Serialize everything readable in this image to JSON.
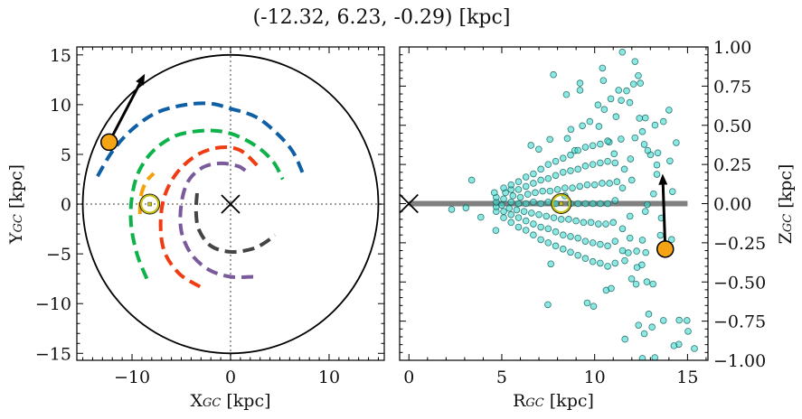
{
  "chart_data": [
    {
      "type": "line",
      "title": "(-12.32, 6.23, -0.29) [kpc]",
      "xlabel": {
        "main": "X",
        "sub": "GC",
        "unit": " [kpc]"
      },
      "ylabel": {
        "main": "Y",
        "sub": "GC",
        "unit": " [kpc]"
      },
      "xlim": [
        -15.6,
        15.6
      ],
      "ylim": [
        -15.7,
        15.8
      ],
      "xticks": [
        -10,
        0,
        10
      ],
      "yticks": [
        -15,
        -10,
        -5,
        0,
        5,
        10,
        15
      ],
      "grid": false,
      "reference_lines": {
        "x": 0,
        "y": 0,
        "style": "dotted",
        "color": "#808080"
      },
      "boundary_circle": {
        "center": [
          0,
          0
        ],
        "radius": 15,
        "color": "#000000"
      },
      "galactic_center": [
        0,
        0
      ],
      "sun": [
        -8.2,
        0
      ],
      "object": {
        "x": -12.32,
        "y": 6.23,
        "color": "#f5a514"
      },
      "velocity_arrow": {
        "from": [
          -12.32,
          6.23
        ],
        "to": [
          -8.7,
          13.1
        ]
      },
      "series": [
        {
          "color": "#0f5fa6",
          "points": [
            [
              -13.5,
              2.8
            ],
            [
              -12,
              5.3
            ],
            [
              -10,
              7.5
            ],
            [
              -7.5,
              9.2
            ],
            [
              -4.5,
              10.0
            ],
            [
              -2,
              10.1
            ],
            [
              0,
              9.6
            ],
            [
              2.5,
              8.8
            ],
            [
              4.5,
              7.3
            ],
            [
              6.3,
              5.3
            ],
            [
              7.5,
              2.7
            ]
          ]
        },
        {
          "color": "#0db34a",
          "points": [
            [
              -8.5,
              -7.5
            ],
            [
              -9.5,
              -5
            ],
            [
              -10.1,
              -2
            ],
            [
              -10,
              0.8
            ],
            [
              -9.3,
              3.3
            ],
            [
              -7.8,
              5.4
            ],
            [
              -5.5,
              6.9
            ],
            [
              -2.5,
              7.4
            ],
            [
              0,
              7.1
            ],
            [
              2.5,
              5.9
            ],
            [
              4.3,
              4.3
            ],
            [
              5.3,
              2.5
            ]
          ]
        },
        {
          "color": "#f5a00a",
          "points": [
            [
              -9.2,
              -1.0
            ],
            [
              -9.1,
              0.8
            ],
            [
              -8.6,
              2.2
            ],
            [
              -7.8,
              3.1
            ]
          ]
        },
        {
          "color": "#f03c12",
          "points": [
            [
              -3.1,
              -8.3
            ],
            [
              -5.2,
              -7
            ],
            [
              -6.7,
              -4.8
            ],
            [
              -7.1,
              -2
            ],
            [
              -6.7,
              0.8
            ],
            [
              -5.4,
              3.2
            ],
            [
              -3.3,
              5
            ],
            [
              -1,
              5.7
            ],
            [
              1,
              5.4
            ],
            [
              2.8,
              3.8
            ]
          ]
        },
        {
          "color": "#7b5a9c",
          "points": [
            [
              2.3,
              -7.3
            ],
            [
              0,
              -7.3
            ],
            [
              -2.2,
              -6.6
            ],
            [
              -4,
              -5
            ],
            [
              -5,
              -2.7
            ],
            [
              -5,
              0
            ],
            [
              -4.3,
              2.3
            ],
            [
              -2.8,
              3.7
            ],
            [
              -1,
              4.1
            ],
            [
              0.8,
              3.8
            ],
            [
              1.7,
              3.2
            ]
          ]
        },
        {
          "color": "#444444",
          "points": [
            [
              -3.4,
              1.1
            ],
            [
              -3.5,
              -0.8
            ],
            [
              -3.2,
              -2.6
            ],
            [
              -2,
              -4.2
            ],
            [
              0,
              -4.8
            ],
            [
              2.2,
              -4.5
            ],
            [
              3.6,
              -3.8
            ],
            [
              4.5,
              -3.1
            ]
          ]
        }
      ]
    },
    {
      "type": "scatter",
      "xlabel": {
        "main": "R",
        "sub": "GC",
        "unit": " [kpc]"
      },
      "ylabel": {
        "main": "Z",
        "sub": "GC",
        "unit": " [kpc]"
      },
      "xlim": [
        -0.5,
        16.1
      ],
      "ylim": [
        -1.0,
        1.0
      ],
      "xticks": [
        0,
        5,
        10,
        15
      ],
      "yticks": [
        -1.0,
        -0.75,
        -0.5,
        -0.25,
        0.0,
        0.25,
        0.5,
        0.75,
        1.0
      ],
      "ytick_labels": [
        "−1.00",
        "−0.75",
        "−0.50",
        "−0.25",
        "0.00",
        "0.25",
        "0.50",
        "0.75",
        "1.00"
      ],
      "yaxis_position": "right",
      "grid": false,
      "disk_line": {
        "from": 0,
        "to": 15,
        "z": 0,
        "color": "#808080"
      },
      "galactic_center": [
        0,
        0
      ],
      "sun": [
        8.2,
        0
      ],
      "object": {
        "x": 13.8,
        "y": -0.29,
        "color": "#f5a514"
      },
      "velocity_arrow": {
        "from": [
          13.8,
          -0.29
        ],
        "to": [
          13.66,
          0.19
        ]
      },
      "marker_color": "#40d8cf",
      "marker_edge": "#0a5a55",
      "points": [
        [
          11.49,
          0.967
        ],
        [
          12.17,
          0.907
        ],
        [
          10.42,
          0.865
        ],
        [
          12.35,
          0.817
        ],
        [
          7.78,
          0.823
        ],
        [
          10.47,
          0.786
        ],
        [
          9.21,
          0.769
        ],
        [
          9.21,
          0.724
        ],
        [
          8.48,
          0.696
        ],
        [
          11.29,
          0.724
        ],
        [
          11.72,
          0.72
        ],
        [
          12.09,
          0.763
        ],
        [
          12.46,
          0.769
        ],
        [
          10.87,
          0.669
        ],
        [
          11.43,
          0.659
        ],
        [
          11.89,
          0.645
        ],
        [
          10.18,
          0.63
        ],
        [
          10.52,
          0.601
        ],
        [
          14.0,
          0.597
        ],
        [
          11.15,
          0.555
        ],
        [
          12.41,
          0.545
        ],
        [
          12.73,
          0.547
        ],
        [
          13.7,
          0.524
        ],
        [
          13.25,
          0.501
        ],
        [
          14.39,
          0.389
        ],
        [
          9.74,
          0.524
        ],
        [
          9.34,
          0.497
        ],
        [
          8.72,
          0.474
        ],
        [
          8.53,
          0.416
        ],
        [
          7.59,
          0.41
        ],
        [
          6.57,
          0.372
        ],
        [
          6.99,
          0.347
        ],
        [
          14.05,
          0.272
        ],
        [
          14.19,
          0.077
        ],
        [
          3.38,
          0.15
        ],
        [
          2.3,
          -0.037
        ],
        [
          3.07,
          -0.027
        ],
        [
          3.87,
          -0.087
        ],
        [
          4.68,
          -0.171
        ],
        [
          7.48,
          -0.645
        ],
        [
          9.6,
          -0.634
        ],
        [
          9.94,
          -0.655
        ],
        [
          7.64,
          -0.385
        ],
        [
          10.62,
          -0.553
        ],
        [
          10.89,
          -0.541
        ],
        [
          11.63,
          -0.865
        ],
        [
          12.36,
          -0.776
        ],
        [
          12.91,
          -0.705
        ],
        [
          13.09,
          -0.788
        ],
        [
          12.67,
          -0.83
        ],
        [
          13.7,
          -0.746
        ],
        [
          14.55,
          -0.744
        ],
        [
          14.97,
          -0.746
        ],
        [
          15.03,
          -0.815
        ],
        [
          14.53,
          -0.898
        ],
        [
          14.27,
          -0.907
        ],
        [
          15.37,
          -0.925
        ],
        [
          12.57,
          -0.988
        ],
        [
          13.24,
          -0.983
        ],
        [
          12.54,
          -0.391
        ],
        [
          12.81,
          -0.499
        ],
        [
          13.14,
          -0.513
        ],
        [
          11.99,
          -0.48
        ],
        [
          12.23,
          -0.514
        ],
        [
          12.28,
          -0.407
        ],
        [
          11.62,
          -0.364
        ],
        [
          11.81,
          -0.314
        ],
        [
          12.26,
          -0.303
        ],
        [
          12.75,
          -0.312
        ],
        [
          12.57,
          -0.233
        ],
        [
          13.54,
          -0.202
        ],
        [
          14.14,
          -0.229
        ],
        [
          13.59,
          -0.092
        ],
        [
          12.73,
          -0.05
        ],
        [
          12.83,
          -0.006
        ],
        [
          13.17,
          0.062
        ],
        [
          13.35,
          0.187
        ],
        [
          13.35,
          0.247
        ],
        [
          13.01,
          0.312
        ],
        [
          13.4,
          0.324
        ],
        [
          12.86,
          0.339
        ],
        [
          12.67,
          0.378
        ],
        [
          12.17,
          0.42
        ],
        [
          12.57,
          0.46
        ],
        [
          11.93,
          0.285
        ],
        [
          11.05,
          0.318
        ],
        [
          10.78,
          0.393
        ],
        [
          10.23,
          0.493
        ],
        [
          11.42,
          0.412
        ],
        [
          8.93,
          0.339
        ],
        [
          4.7,
          -0.05
        ],
        [
          4.7,
          -0.02
        ],
        [
          4.7,
          0.01
        ],
        [
          4.7,
          0.04
        ],
        [
          4.6,
          0.07
        ],
        [
          5.1,
          -0.09
        ],
        [
          5.1,
          -0.05
        ],
        [
          5.0,
          -0.01
        ],
        [
          5.1,
          0.03
        ],
        [
          5.2,
          0.07
        ],
        [
          5.1,
          0.1
        ],
        [
          5.5,
          -0.12
        ],
        [
          5.5,
          -0.07
        ],
        [
          5.4,
          -0.03
        ],
        [
          5.5,
          0.01
        ],
        [
          5.6,
          0.05
        ],
        [
          5.5,
          0.09
        ],
        [
          5.5,
          0.12
        ],
        [
          5.9,
          -0.15
        ],
        [
          5.9,
          -0.09
        ],
        [
          5.8,
          -0.04
        ],
        [
          5.9,
          0.0
        ],
        [
          6.0,
          0.04
        ],
        [
          5.9,
          0.09
        ],
        [
          5.9,
          0.14
        ],
        [
          6.3,
          -0.17
        ],
        [
          6.3,
          -0.11
        ],
        [
          6.2,
          -0.05
        ],
        [
          6.3,
          0.0
        ],
        [
          6.4,
          0.06
        ],
        [
          6.3,
          0.11
        ],
        [
          6.3,
          0.17
        ],
        [
          6.7,
          -0.2
        ],
        [
          6.7,
          -0.13
        ],
        [
          6.6,
          -0.06
        ],
        [
          6.7,
          0.01
        ],
        [
          6.8,
          0.07
        ],
        [
          6.7,
          0.13
        ],
        [
          6.7,
          0.19
        ],
        [
          7.1,
          -0.23
        ],
        [
          7.1,
          -0.15
        ],
        [
          7.0,
          -0.07
        ],
        [
          7.1,
          0.0
        ],
        [
          7.2,
          0.08
        ],
        [
          7.1,
          0.15
        ],
        [
          7.1,
          0.22
        ],
        [
          7.5,
          -0.25
        ],
        [
          7.5,
          -0.16
        ],
        [
          7.4,
          -0.08
        ],
        [
          7.5,
          0.01
        ],
        [
          7.6,
          0.08
        ],
        [
          7.5,
          0.16
        ],
        [
          7.5,
          0.25
        ],
        [
          7.9,
          -0.27
        ],
        [
          7.9,
          -0.18
        ],
        [
          7.8,
          -0.09
        ],
        [
          7.9,
          0.0
        ],
        [
          8.0,
          0.09
        ],
        [
          7.9,
          0.18
        ],
        [
          7.9,
          0.27
        ],
        [
          8.3,
          -0.29
        ],
        [
          8.3,
          -0.2
        ],
        [
          8.2,
          -0.1
        ],
        [
          8.4,
          0.05
        ],
        [
          8.4,
          0.1
        ],
        [
          8.3,
          0.2
        ],
        [
          8.3,
          0.29
        ],
        [
          8.7,
          -0.31
        ],
        [
          8.7,
          -0.21
        ],
        [
          8.6,
          -0.1
        ],
        [
          8.7,
          0.0
        ],
        [
          8.8,
          0.1
        ],
        [
          8.7,
          0.21
        ],
        [
          8.7,
          0.31
        ],
        [
          9.1,
          -0.33
        ],
        [
          9.1,
          -0.22
        ],
        [
          9.0,
          -0.11
        ],
        [
          9.1,
          0.0
        ],
        [
          9.2,
          0.11
        ],
        [
          9.1,
          0.22
        ],
        [
          9.1,
          0.34
        ],
        [
          9.5,
          -0.35
        ],
        [
          9.5,
          -0.24
        ],
        [
          9.4,
          -0.12
        ],
        [
          9.5,
          0.0
        ],
        [
          9.6,
          0.12
        ],
        [
          9.5,
          0.24
        ],
        [
          9.5,
          0.36
        ],
        [
          9.9,
          -0.37
        ],
        [
          9.9,
          -0.25
        ],
        [
          9.8,
          -0.12
        ],
        [
          9.9,
          0.0
        ],
        [
          10.0,
          0.12
        ],
        [
          9.9,
          0.25
        ],
        [
          9.9,
          0.37
        ],
        [
          10.3,
          -0.38
        ],
        [
          10.3,
          -0.26
        ],
        [
          10.2,
          -0.13
        ],
        [
          10.3,
          0.0
        ],
        [
          10.4,
          0.13
        ],
        [
          10.3,
          0.26
        ],
        [
          10.3,
          0.38
        ],
        [
          10.7,
          -0.4
        ],
        [
          10.7,
          -0.27
        ],
        [
          10.6,
          -0.13
        ],
        [
          10.7,
          0.0
        ],
        [
          10.8,
          0.13
        ],
        [
          10.7,
          0.27
        ],
        [
          10.7,
          0.4
        ],
        [
          11.1,
          -0.38
        ],
        [
          11.1,
          -0.24
        ],
        [
          11.0,
          -0.12
        ],
        [
          11.1,
          0.02
        ],
        [
          11.2,
          0.14
        ],
        [
          11.1,
          0.26
        ],
        [
          11.5,
          -0.3
        ],
        [
          11.5,
          -0.16
        ],
        [
          11.5,
          0.1
        ],
        [
          11.6,
          0.22
        ],
        [
          11.9,
          -0.22
        ],
        [
          11.9,
          -0.08
        ],
        [
          12.0,
          0.15
        ]
      ]
    }
  ]
}
